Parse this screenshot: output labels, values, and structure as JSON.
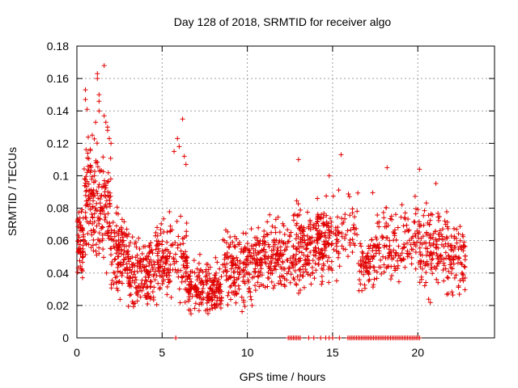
{
  "chart_data": {
    "type": "scatter",
    "title": "Day 128 of 2018, SRMTID for receiver algo",
    "xlabel": "GPS time / hours",
    "ylabel": "SRMTID / TECUs",
    "xlim": [
      0,
      24.5
    ],
    "ylim": [
      0,
      0.18
    ],
    "x_ticks": [
      0,
      5,
      10,
      15,
      20
    ],
    "y_ticks": [
      0,
      0.02,
      0.04,
      0.06,
      0.08,
      0.1,
      0.12,
      0.14,
      0.16,
      0.18
    ],
    "x_tick_labels": [
      "0",
      "5",
      "10",
      "15",
      "20"
    ],
    "y_tick_labels": [
      "0",
      "0.02",
      "0.04",
      "0.06",
      "0.08",
      "0.1",
      "0.12",
      "0.14",
      "0.16",
      "0.18"
    ],
    "grid": true,
    "marker": "plus",
    "series_color": "#e00000",
    "segments": [
      {
        "x0": 0.0,
        "x1": 0.4,
        "mean": 0.06,
        "spread": 0.022,
        "count": 60
      },
      {
        "x0": 0.4,
        "x1": 1.0,
        "mean": 0.085,
        "spread": 0.028,
        "count": 80
      },
      {
        "x0": 1.0,
        "x1": 2.0,
        "mean": 0.082,
        "spread": 0.03,
        "count": 110
      },
      {
        "x0": 2.0,
        "x1": 3.0,
        "mean": 0.052,
        "spread": 0.02,
        "count": 110
      },
      {
        "x0": 3.0,
        "x1": 4.5,
        "mean": 0.04,
        "spread": 0.016,
        "count": 150
      },
      {
        "x0": 4.5,
        "x1": 6.5,
        "mean": 0.048,
        "spread": 0.02,
        "count": 170
      },
      {
        "x0": 6.5,
        "x1": 8.5,
        "mean": 0.03,
        "spread": 0.012,
        "count": 190
      },
      {
        "x0": 8.5,
        "x1": 10.5,
        "mean": 0.045,
        "spread": 0.018,
        "count": 170
      },
      {
        "x0": 10.5,
        "x1": 12.5,
        "mean": 0.05,
        "spread": 0.018,
        "count": 170
      },
      {
        "x0": 12.5,
        "x1": 14.0,
        "mean": 0.055,
        "spread": 0.02,
        "count": 140
      },
      {
        "x0": 14.0,
        "x1": 15.0,
        "mean": 0.06,
        "spread": 0.022,
        "count": 110
      },
      {
        "x0": 15.0,
        "x1": 16.5,
        "mean": 0.065,
        "spread": 0.018,
        "count": 60
      },
      {
        "x0": 16.5,
        "x1": 17.2,
        "mean": 0.045,
        "spread": 0.012,
        "count": 50
      },
      {
        "x0": 17.2,
        "x1": 19.8,
        "mean": 0.058,
        "spread": 0.018,
        "count": 150
      },
      {
        "x0": 19.8,
        "x1": 21.5,
        "mean": 0.055,
        "spread": 0.022,
        "count": 130
      },
      {
        "x0": 21.5,
        "x1": 22.8,
        "mean": 0.05,
        "spread": 0.02,
        "count": 100
      }
    ],
    "zero_points_x": [
      12.4,
      12.5,
      12.6,
      12.7,
      12.8,
      12.9,
      13.0,
      13.1,
      13.6,
      13.9,
      14.3,
      14.6,
      14.8,
      15.0,
      15.4,
      15.9,
      16.0,
      16.1,
      16.2,
      16.3,
      16.4,
      16.5,
      16.6,
      16.7,
      16.8,
      16.9,
      17.0,
      17.1,
      17.2,
      17.3,
      17.4,
      17.5,
      17.6,
      17.7,
      17.8,
      17.9,
      18.0,
      18.1,
      18.2,
      18.3,
      18.4,
      18.5,
      18.6,
      18.7,
      18.8,
      18.9,
      19.0,
      19.1,
      19.2,
      19.3,
      19.4,
      19.5,
      19.6,
      19.7,
      19.8,
      19.9,
      20.0,
      20.1,
      5.8
    ],
    "outliers": [
      [
        0.5,
        0.153
      ],
      [
        0.5,
        0.147
      ],
      [
        0.6,
        0.141
      ],
      [
        1.2,
        0.163
      ],
      [
        1.2,
        0.16
      ],
      [
        1.3,
        0.15
      ],
      [
        1.3,
        0.146
      ],
      [
        1.3,
        0.14
      ],
      [
        1.6,
        0.168
      ],
      [
        1.6,
        0.137
      ],
      [
        1.7,
        0.133
      ],
      [
        1.8,
        0.13
      ],
      [
        1.8,
        0.128
      ],
      [
        1.1,
        0.133
      ],
      [
        0.9,
        0.125
      ],
      [
        1.9,
        0.123
      ],
      [
        2.0,
        0.12
      ],
      [
        6.2,
        0.135
      ],
      [
        5.9,
        0.123
      ],
      [
        6.0,
        0.118
      ],
      [
        5.7,
        0.115
      ],
      [
        6.3,
        0.112
      ],
      [
        6.4,
        0.107
      ],
      [
        13.0,
        0.11
      ],
      [
        15.5,
        0.113
      ],
      [
        18.2,
        0.105
      ],
      [
        20.1,
        0.104
      ],
      [
        14.8,
        0.1
      ]
    ]
  }
}
